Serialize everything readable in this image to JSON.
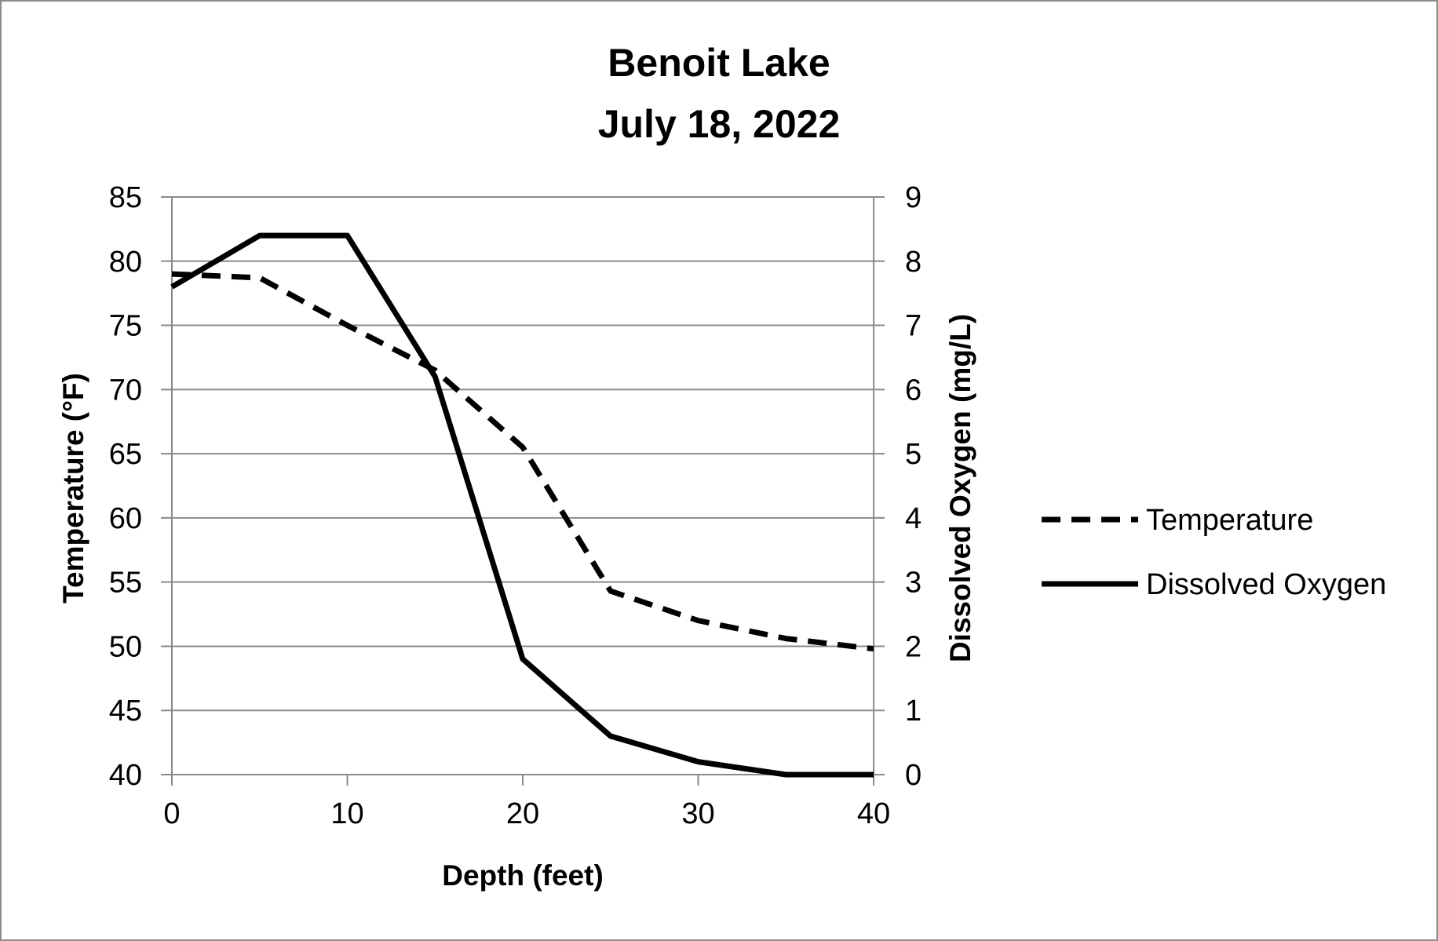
{
  "chart_data": {
    "type": "line",
    "title_lines": [
      "Benoit Lake",
      "July 18, 2022"
    ],
    "xlabel": "Depth (feet)",
    "ylabel_left": "Temperature (°F)",
    "ylabel_right": "Dissolved Oxygen (mg/L)",
    "xlim": [
      0,
      40
    ],
    "ylim_left": [
      40,
      85
    ],
    "ylim_right": [
      0,
      9
    ],
    "x_ticks": [
      "0",
      "10",
      "20",
      "30",
      "40"
    ],
    "y_left_ticks": [
      "40",
      "45",
      "50",
      "55",
      "60",
      "65",
      "70",
      "75",
      "80",
      "85"
    ],
    "y_right_ticks": [
      "0",
      "1",
      "2",
      "3",
      "4",
      "5",
      "6",
      "7",
      "8",
      "9"
    ],
    "grid": "horizontal",
    "legend_position": "right",
    "series": [
      {
        "name": "Temperature",
        "axis": "left",
        "style": "dashed",
        "color": "#000000",
        "x": [
          0,
          5,
          10,
          15,
          20,
          25,
          30,
          35,
          40
        ],
        "y": [
          79,
          78.7,
          75,
          71.5,
          65.5,
          54.3,
          52,
          50.6,
          49.8
        ]
      },
      {
        "name": "Dissolved Oxygen",
        "axis": "right",
        "style": "solid",
        "color": "#000000",
        "x": [
          0,
          5,
          10,
          15,
          20,
          25,
          30,
          35,
          40
        ],
        "y": [
          7.6,
          8.4,
          8.4,
          6.2,
          1.8,
          0.6,
          0.2,
          0,
          0
        ]
      }
    ]
  }
}
